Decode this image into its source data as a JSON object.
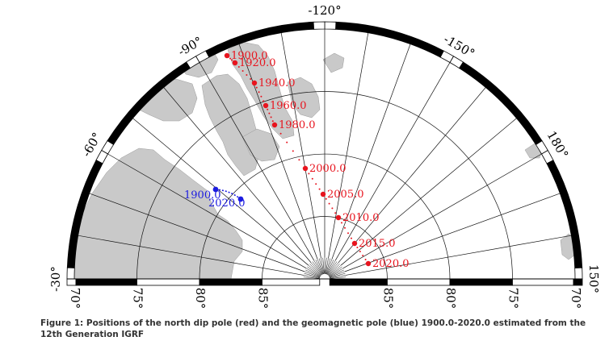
{
  "caption": "Figure 1: Positions of the north dip pole (red) and the geomagnetic pole (blue) 1900.0-2020.0 estimated from the 12th Generation IGRF",
  "colors": {
    "dip_pole": "#e8141e",
    "geomagnetic_pole": "#1c1ce0",
    "land": "#c9c9c9",
    "ocean": "#ffffff",
    "grid": "#111111"
  },
  "map": {
    "projection": "polar-stereographic-north-half",
    "longitude_labels": [
      "-30°",
      "-60°",
      "-90°",
      "-120°",
      "-150°",
      "180°",
      "150°"
    ],
    "latitude_labels_left": [
      "70°",
      "75°",
      "80°",
      "85°"
    ],
    "latitude_labels_right": [
      "85°",
      "80°",
      "75°",
      "70°"
    ],
    "dip_pole": {
      "labels": [
        "1900.0",
        "1920.0",
        "1940.0",
        "1960.0",
        "1980.0",
        "2000.0",
        "2005.0",
        "2010.0",
        "2015.0",
        "2020.0"
      ]
    },
    "geomagnetic_pole": {
      "labels": [
        "1900.0",
        "2020.0"
      ]
    }
  }
}
